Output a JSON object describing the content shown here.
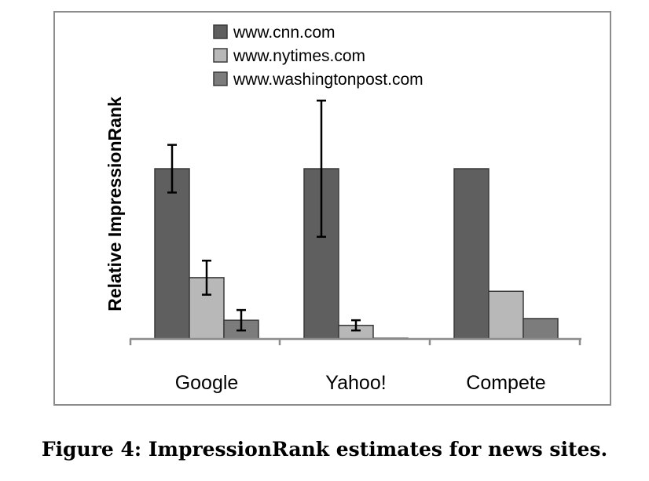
{
  "chart_data": {
    "type": "bar",
    "ylabel": "Relative ImpressionRank",
    "categories": [
      "Google",
      "Yahoo!",
      "Compete"
    ],
    "ylim": [
      0,
      1.4
    ],
    "series": [
      {
        "name": "www.cnn.com",
        "color": "#5f5f5f",
        "values": [
          1.0,
          1.0,
          1.0
        ],
        "error": [
          0.14,
          0.4,
          null
        ]
      },
      {
        "name": "www.nytimes.com",
        "color": "#b8b8b8",
        "values": [
          0.36,
          0.08,
          0.28
        ],
        "error": [
          0.1,
          0.03,
          null
        ]
      },
      {
        "name": "www.washingtonpost.com",
        "color": "#7c7c7c",
        "values": [
          0.11,
          0.0,
          0.12
        ],
        "error": [
          0.06,
          null,
          null
        ]
      }
    ],
    "legend_position": "top"
  },
  "caption": "Figure 4: ImpressionRank estimates for news sites."
}
